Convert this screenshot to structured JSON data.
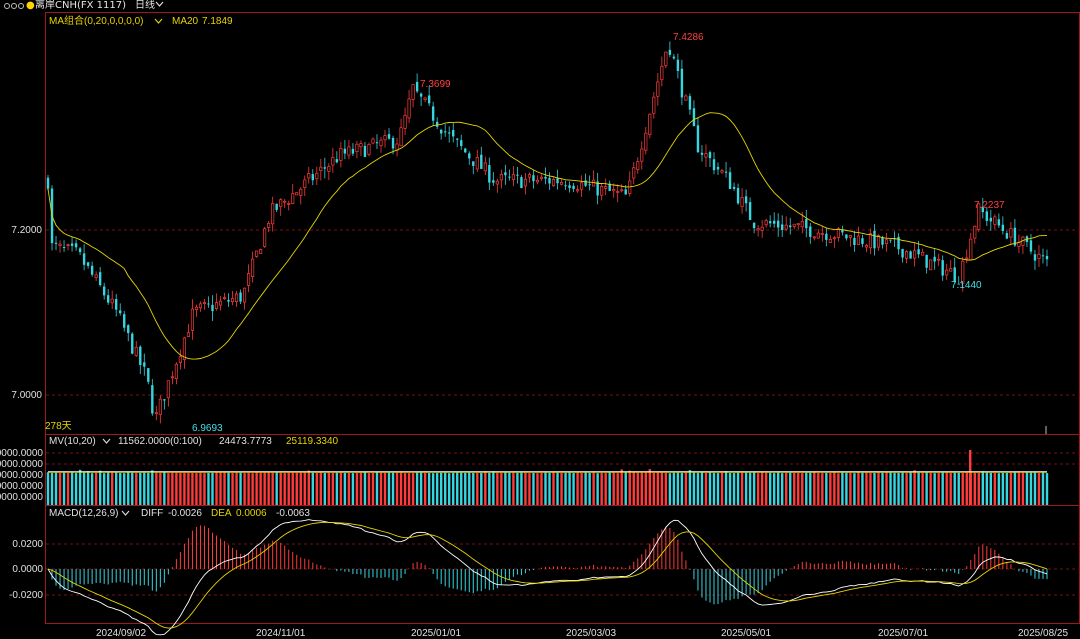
{
  "header": {
    "symbol": "离岸CNH(FX 1117)",
    "period": "日线",
    "period_chevron": "chevron-down-icon"
  },
  "main_panel": {
    "indicator_name": "MA组合(0,20,0,0,0,0)",
    "ma20_label": "MA20",
    "ma20_value": "7.1849",
    "y_ticks": [
      "7.2000",
      "7.0000"
    ],
    "range_days": "278天",
    "annotations": {
      "high_1": "7.3699",
      "high_2": "7.4286",
      "high_3": "7.2237",
      "low_1": "6.9693",
      "low_2": "7.1440"
    }
  },
  "volume_panel": {
    "indicator_name": "MV(10,20)",
    "value_1": "11562.0000(0:100)",
    "value_2": "24473.7773",
    "value_3": "25119.3340",
    "y_ticks": [
      "0000.0000",
      "0000.0000",
      "0000.0000",
      "0000.0000",
      "0000.0000"
    ]
  },
  "macd_panel": {
    "indicator_name": "MACD(12,26,9)",
    "diff_label": "DIFF",
    "diff_value": "-0.0026",
    "dea_label": "DEA",
    "dea_value": "0.0006",
    "macd_value": "-0.0063",
    "y_ticks": [
      "0.0200",
      "0.0000",
      "-0.0200"
    ]
  },
  "x_axis": {
    "labels": [
      "2024/09/02",
      "2024/11/01",
      "2025/01/01",
      "2025/03/03",
      "2025/05/01",
      "2025/07/01",
      "2025/08/25"
    ]
  },
  "colors": {
    "up": "#ff3b3b",
    "down": "#35d6e0",
    "ma20": "#e6d400",
    "diff_line": "#ffffff",
    "dea_line": "#e6d400",
    "grid": "#7a1010",
    "frame": "#a01818",
    "label_yellow": "#e6d400",
    "label_white": "#e0e0e0",
    "annot_red": "#ff4040",
    "annot_cyan": "#40e0e8"
  },
  "chart_data": {
    "type": "candlestick",
    "period": "daily",
    "y_ticks_price": [
      7.2,
      7.0
    ],
    "y_ticks_macd": [
      0.02,
      0.0,
      -0.02
    ],
    "x_labels": [
      "2024/09/02",
      "2024/11/01",
      "2025/01/01",
      "2025/03/03",
      "2025/05/01",
      "2025/07/01",
      "2025/08/25"
    ],
    "price_keypoints": [
      {
        "date": "2024/08/26",
        "close": 7.26
      },
      {
        "date": "2024/08/27",
        "close": 7.18
      },
      {
        "date": "2024/09/06",
        "close": 7.17
      },
      {
        "date": "2024/09/20",
        "close": 7.1
      },
      {
        "date": "2024/10/01",
        "close": 7.02
      },
      {
        "date": "2024/10/04",
        "low": 6.9693
      },
      {
        "date": "2024/10/18",
        "close": 7.1
      },
      {
        "date": "2024/11/05",
        "close": 7.12
      },
      {
        "date": "2024/11/15",
        "close": 7.22
      },
      {
        "date": "2024/12/10",
        "close": 7.29
      },
      {
        "date": "2025/01/01",
        "close": 7.31
      },
      {
        "date": "2025/01/06",
        "high": 7.3699
      },
      {
        "date": "2025/01/20",
        "close": 7.31
      },
      {
        "date": "2025/02/05",
        "close": 7.26
      },
      {
        "date": "2025/03/03",
        "close": 7.26
      },
      {
        "date": "2025/03/25",
        "close": 7.24
      },
      {
        "date": "2025/04/09",
        "high": 7.4286
      },
      {
        "date": "2025/04/20",
        "close": 7.3
      },
      {
        "date": "2025/05/01",
        "close": 7.26
      },
      {
        "date": "2025/05/10",
        "close": 7.21
      },
      {
        "date": "2025/06/01",
        "close": 7.2
      },
      {
        "date": "2025/07/01",
        "close": 7.18
      },
      {
        "date": "2025/07/24",
        "low": 7.144
      },
      {
        "date": "2025/07/31",
        "high": 7.2237
      },
      {
        "date": "2025/08/25",
        "close": 7.16
      }
    ],
    "ma20_last": 7.1849,
    "macd_last": {
      "diff": -0.0026,
      "dea": 0.0006,
      "macd": -0.0063
    }
  }
}
